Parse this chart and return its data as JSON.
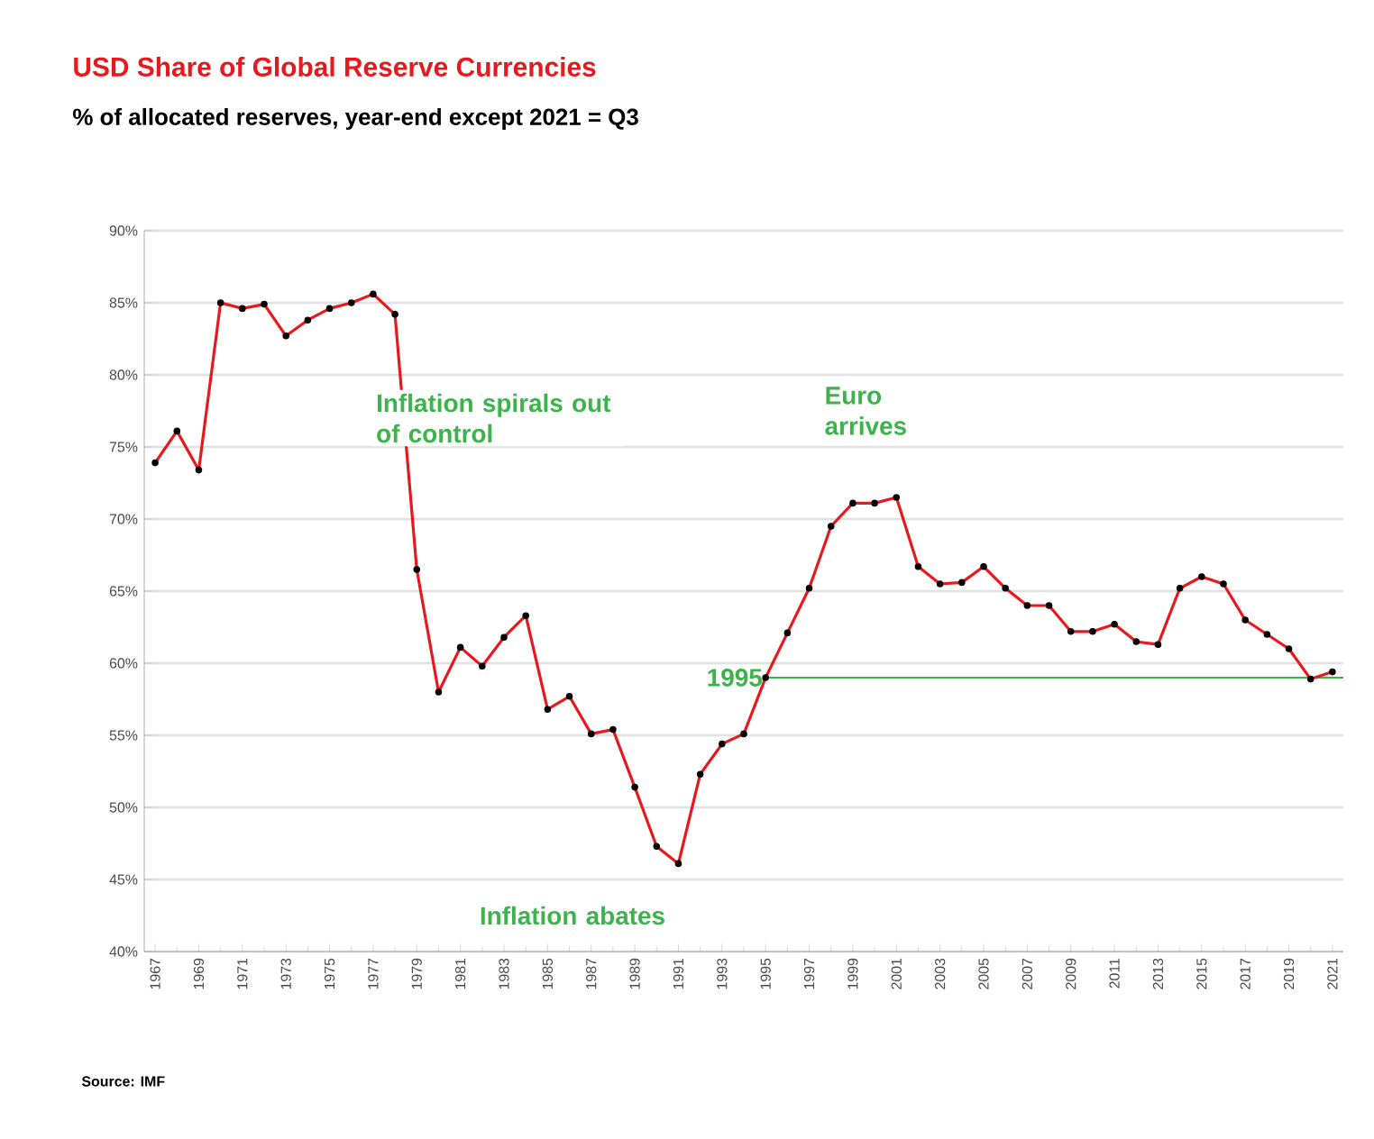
{
  "chart_data": {
    "type": "line",
    "title": "USD Share of Global  Reserve Currencies",
    "subtitle": "% of allocated reserves, year-end except 2021 = Q3",
    "x": [
      1967,
      1968,
      1969,
      1970,
      1971,
      1972,
      1973,
      1974,
      1975,
      1976,
      1977,
      1978,
      1979,
      1980,
      1981,
      1982,
      1983,
      1984,
      1985,
      1986,
      1987,
      1988,
      1989,
      1990,
      1991,
      1992,
      1993,
      1994,
      1995,
      1996,
      1997,
      1998,
      1999,
      2000,
      2001,
      2002,
      2003,
      2004,
      2005,
      2006,
      2007,
      2008,
      2009,
      2010,
      2011,
      2012,
      2013,
      2014,
      2015,
      2016,
      2017,
      2018,
      2019,
      2020,
      2021
    ],
    "series": [
      {
        "color": "#e8191e",
        "values": [
          73.9,
          76.1,
          73.4,
          85.0,
          84.6,
          84.9,
          82.7,
          83.8,
          84.6,
          85.0,
          85.6,
          84.2,
          66.5,
          58.0,
          61.1,
          59.8,
          61.8,
          63.3,
          56.8,
          57.7,
          55.1,
          55.4,
          51.4,
          47.3,
          46.1,
          52.3,
          54.4,
          55.1,
          59.0,
          62.1,
          65.2,
          69.5,
          71.1,
          71.1,
          71.5,
          66.7,
          65.5,
          65.6,
          66.7,
          65.2,
          64.0,
          64.0,
          62.2,
          62.2,
          62.7,
          61.5,
          61.3,
          65.2,
          66.0,
          65.5,
          63.0,
          62.0,
          61.0,
          58.9,
          59.4
        ]
      }
    ],
    "xlim": [
      1966.5,
      2021.5
    ],
    "xticks": [
      1967,
      1969,
      1971,
      1973,
      1975,
      1977,
      1979,
      1981,
      1983,
      1985,
      1987,
      1989,
      1991,
      1993,
      1995,
      1997,
      1999,
      2001,
      2003,
      2005,
      2007,
      2009,
      2011,
      2013,
      2015,
      2017,
      2019,
      2021
    ],
    "ylim": [
      40,
      90
    ],
    "yticks": [
      {
        "value": 40,
        "label": "40%"
      },
      {
        "value": 45,
        "label": "45%"
      },
      {
        "value": 50,
        "label": "50%"
      },
      {
        "value": 55,
        "label": "55%"
      },
      {
        "value": 60,
        "label": "60%"
      },
      {
        "value": 65,
        "label": "65%"
      },
      {
        "value": 70,
        "label": "70%"
      },
      {
        "value": 75,
        "label": "75%"
      },
      {
        "value": 80,
        "label": "80%"
      },
      {
        "value": 85,
        "label": "85%"
      },
      {
        "value": 90,
        "label": "90%"
      }
    ],
    "grid": "y",
    "marker": "circle",
    "line_style": "solid",
    "ref_lines": [
      {
        "axis": "y",
        "value": 59,
        "color": "#3cb44b"
      }
    ],
    "annotations": [
      "Inflation spirals out of control",
      "Euro arrives",
      "Inflation abates",
      {
        "text": "1995",
        "x": 1995,
        "y": 59
      },
      "Source: IMF"
    ]
  }
}
